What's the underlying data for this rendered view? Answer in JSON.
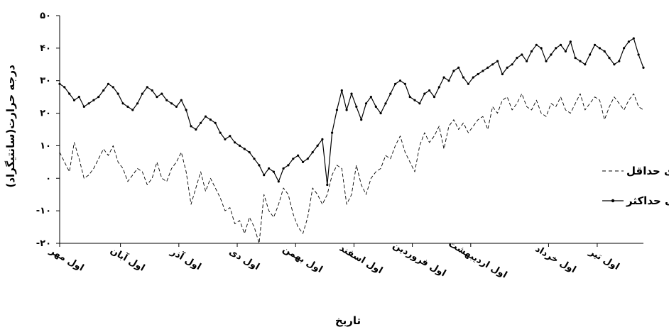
{
  "chart_data": {
    "type": "line",
    "title": "",
    "xlabel": "تاریخ",
    "ylabel": "درجه حرارت(سانتیگراد)",
    "ylim": [
      -20,
      50
    ],
    "yticks": [
      -20,
      -10,
      0,
      10,
      20,
      30,
      40,
      50
    ],
    "ytick_labels": [
      "-۲۰",
      "-۱۰",
      "۰",
      "۱۰",
      "۲۰",
      "۳۰",
      "۴۰",
      "۵۰"
    ],
    "xlim": [
      0,
      120
    ],
    "grid": false,
    "legend_position": "right",
    "categories": [
      "اول مهر",
      "اول آبان",
      "اول آذر",
      "اول دی",
      "اول بهمن",
      "اول اسفند",
      "اول فروردین",
      "اول اردیبهشت",
      "اول خرداد",
      "اول تیر"
    ],
    "category_x": [
      0,
      12.5,
      24.5,
      36.5,
      48.5,
      60.5,
      72.5,
      84.5,
      100.5,
      110.5
    ],
    "series": [
      {
        "name": "دمای حداکثر",
        "style": "solid-with-markers",
        "x": [
          0,
          1,
          2,
          3,
          4,
          5,
          6,
          7,
          8,
          9,
          10,
          11,
          12,
          13,
          14,
          15,
          16,
          17,
          18,
          19,
          20,
          21,
          22,
          23,
          24,
          25,
          26,
          27,
          28,
          29,
          30,
          31,
          32,
          33,
          34,
          35,
          36,
          37,
          38,
          39,
          40,
          41,
          42,
          43,
          44,
          45,
          46,
          47,
          48,
          49,
          50,
          51,
          52,
          53,
          54,
          55,
          56,
          57,
          58,
          59,
          60,
          61,
          62,
          63,
          64,
          65,
          66,
          67,
          68,
          69,
          70,
          71,
          72,
          73,
          74,
          75,
          76,
          77,
          78,
          79,
          80,
          81,
          82,
          83,
          84,
          85,
          86,
          87,
          88,
          89,
          90,
          91,
          92,
          93,
          94,
          95,
          96,
          97,
          98,
          99,
          100,
          101,
          102,
          103,
          104,
          105,
          106,
          107,
          108,
          109,
          110,
          111,
          112,
          113,
          114,
          115,
          116,
          117,
          118,
          119,
          120
        ],
        "y": [
          29,
          28,
          26,
          24,
          25,
          22,
          23,
          24,
          25,
          27,
          29,
          28,
          26,
          23,
          22,
          21,
          23,
          26,
          28,
          27,
          25,
          26,
          24,
          23,
          22,
          24,
          21,
          16,
          15,
          17,
          19,
          18,
          17,
          14,
          12,
          13,
          11,
          10,
          9,
          8,
          6,
          4,
          1,
          3,
          2,
          -1,
          3,
          4,
          6,
          7,
          5,
          6,
          8,
          10,
          12,
          -2,
          14,
          21,
          27,
          21,
          26,
          22,
          18,
          23,
          25,
          22,
          20,
          23,
          26,
          29,
          30,
          29,
          25,
          24,
          23,
          26,
          27,
          25,
          28,
          31,
          30,
          33,
          34,
          31,
          29,
          31,
          32,
          33,
          34,
          35,
          36,
          32,
          34,
          35,
          37,
          38,
          36,
          39,
          41,
          40,
          36,
          38,
          40,
          41,
          39,
          42,
          37,
          36,
          35,
          38,
          41,
          40,
          39,
          37,
          35,
          36,
          40,
          42,
          43,
          38,
          34
        ],
        "color": "#000000"
      },
      {
        "name": "دمای حداقل",
        "style": "dashed",
        "x": [
          0,
          1,
          2,
          3,
          4,
          5,
          6,
          7,
          8,
          9,
          10,
          11,
          12,
          13,
          14,
          15,
          16,
          17,
          18,
          19,
          20,
          21,
          22,
          23,
          24,
          25,
          26,
          27,
          28,
          29,
          30,
          31,
          32,
          33,
          34,
          35,
          36,
          37,
          38,
          39,
          40,
          41,
          42,
          43,
          44,
          45,
          46,
          47,
          48,
          49,
          50,
          51,
          52,
          53,
          54,
          55,
          56,
          57,
          58,
          59,
          60,
          61,
          62,
          63,
          64,
          65,
          66,
          67,
          68,
          69,
          70,
          71,
          72,
          73,
          74,
          75,
          76,
          77,
          78,
          79,
          80,
          81,
          82,
          83,
          84,
          85,
          86,
          87,
          88,
          89,
          90,
          91,
          92,
          93,
          94,
          95,
          96,
          97,
          98,
          99,
          100,
          101,
          102,
          103,
          104,
          105,
          106,
          107,
          108,
          109,
          110,
          111,
          112,
          113,
          114,
          115,
          116,
          117,
          118,
          119,
          120
        ],
        "y": [
          8,
          5,
          2,
          11,
          6,
          0,
          1,
          3,
          6,
          9,
          7,
          10,
          5,
          3,
          -1,
          1,
          3,
          2,
          -2,
          0,
          5,
          0,
          -1,
          3,
          5,
          8,
          2,
          -8,
          -3,
          2,
          -4,
          0,
          -3,
          -6,
          -10,
          -9,
          -14,
          -13,
          -17,
          -12,
          -15,
          -20,
          -5,
          -10,
          -12,
          -8,
          -3,
          -5,
          -11,
          -15,
          -17,
          -12,
          -3,
          -5,
          -8,
          -5,
          1,
          4,
          3,
          -8,
          -5,
          4,
          -2,
          -5,
          0,
          2,
          3,
          7,
          6,
          10,
          13,
          8,
          5,
          2,
          10,
          14,
          11,
          13,
          16,
          9,
          16,
          18,
          15,
          17,
          14,
          16,
          18,
          19,
          15,
          22,
          20,
          24,
          25,
          21,
          23,
          26,
          22,
          21,
          24,
          20,
          19,
          23,
          22,
          25,
          21,
          20,
          23,
          26,
          21,
          23,
          25,
          24,
          18,
          22,
          25,
          23,
          21,
          24,
          26,
          22,
          21
        ]
      }
    ]
  }
}
